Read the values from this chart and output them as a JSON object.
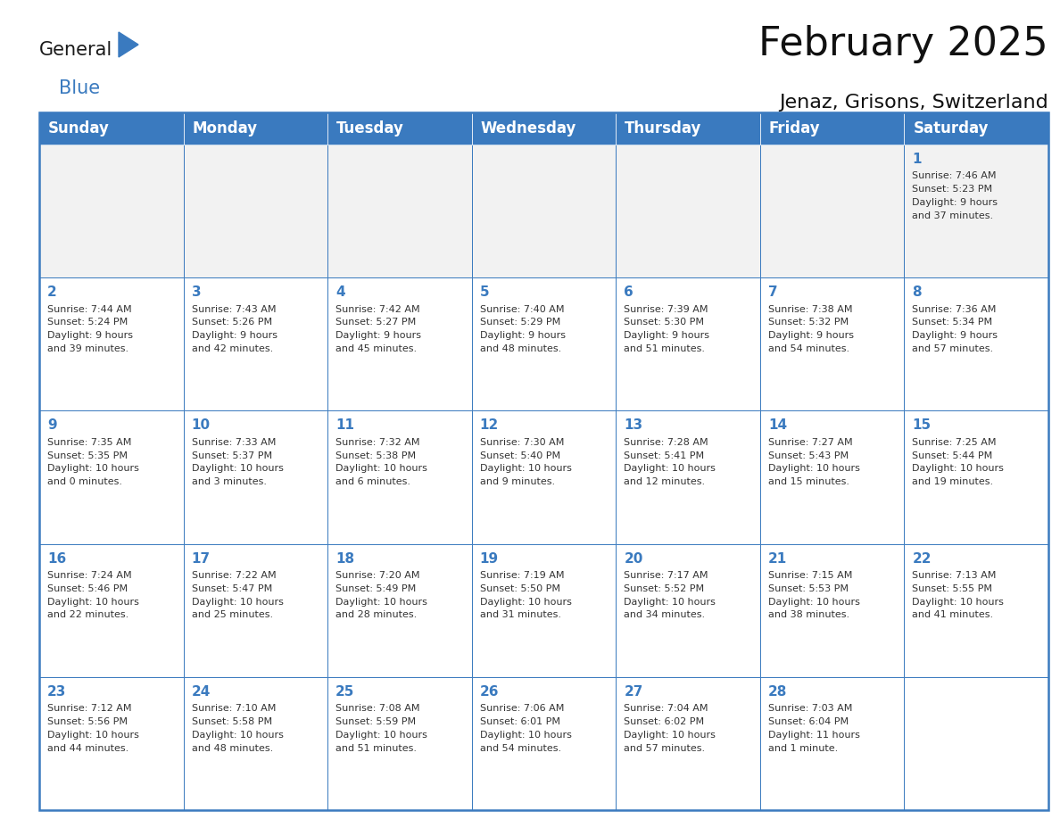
{
  "title": "February 2025",
  "subtitle": "Jenaz, Grisons, Switzerland",
  "header_color": "#3a7abf",
  "header_text_color": "#ffffff",
  "cell_bg_white": "#ffffff",
  "cell_bg_gray": "#f2f2f2",
  "border_color": "#3a7abf",
  "text_color": "#333333",
  "day_num_color": "#3a7abf",
  "day_names": [
    "Sunday",
    "Monday",
    "Tuesday",
    "Wednesday",
    "Thursday",
    "Friday",
    "Saturday"
  ],
  "title_fontsize": 32,
  "subtitle_fontsize": 16,
  "header_fontsize": 12,
  "day_num_fontsize": 11,
  "cell_text_fontsize": 8.0,
  "days": [
    {
      "day": 1,
      "col": 6,
      "row": 0,
      "sunrise": "7:46 AM",
      "sunset": "5:23 PM",
      "daylight_l1": "Daylight: 9 hours",
      "daylight_l2": "and 37 minutes."
    },
    {
      "day": 2,
      "col": 0,
      "row": 1,
      "sunrise": "7:44 AM",
      "sunset": "5:24 PM",
      "daylight_l1": "Daylight: 9 hours",
      "daylight_l2": "and 39 minutes."
    },
    {
      "day": 3,
      "col": 1,
      "row": 1,
      "sunrise": "7:43 AM",
      "sunset": "5:26 PM",
      "daylight_l1": "Daylight: 9 hours",
      "daylight_l2": "and 42 minutes."
    },
    {
      "day": 4,
      "col": 2,
      "row": 1,
      "sunrise": "7:42 AM",
      "sunset": "5:27 PM",
      "daylight_l1": "Daylight: 9 hours",
      "daylight_l2": "and 45 minutes."
    },
    {
      "day": 5,
      "col": 3,
      "row": 1,
      "sunrise": "7:40 AM",
      "sunset": "5:29 PM",
      "daylight_l1": "Daylight: 9 hours",
      "daylight_l2": "and 48 minutes."
    },
    {
      "day": 6,
      "col": 4,
      "row": 1,
      "sunrise": "7:39 AM",
      "sunset": "5:30 PM",
      "daylight_l1": "Daylight: 9 hours",
      "daylight_l2": "and 51 minutes."
    },
    {
      "day": 7,
      "col": 5,
      "row": 1,
      "sunrise": "7:38 AM",
      "sunset": "5:32 PM",
      "daylight_l1": "Daylight: 9 hours",
      "daylight_l2": "and 54 minutes."
    },
    {
      "day": 8,
      "col": 6,
      "row": 1,
      "sunrise": "7:36 AM",
      "sunset": "5:34 PM",
      "daylight_l1": "Daylight: 9 hours",
      "daylight_l2": "and 57 minutes."
    },
    {
      "day": 9,
      "col": 0,
      "row": 2,
      "sunrise": "7:35 AM",
      "sunset": "5:35 PM",
      "daylight_l1": "Daylight: 10 hours",
      "daylight_l2": "and 0 minutes."
    },
    {
      "day": 10,
      "col": 1,
      "row": 2,
      "sunrise": "7:33 AM",
      "sunset": "5:37 PM",
      "daylight_l1": "Daylight: 10 hours",
      "daylight_l2": "and 3 minutes."
    },
    {
      "day": 11,
      "col": 2,
      "row": 2,
      "sunrise": "7:32 AM",
      "sunset": "5:38 PM",
      "daylight_l1": "Daylight: 10 hours",
      "daylight_l2": "and 6 minutes."
    },
    {
      "day": 12,
      "col": 3,
      "row": 2,
      "sunrise": "7:30 AM",
      "sunset": "5:40 PM",
      "daylight_l1": "Daylight: 10 hours",
      "daylight_l2": "and 9 minutes."
    },
    {
      "day": 13,
      "col": 4,
      "row": 2,
      "sunrise": "7:28 AM",
      "sunset": "5:41 PM",
      "daylight_l1": "Daylight: 10 hours",
      "daylight_l2": "and 12 minutes."
    },
    {
      "day": 14,
      "col": 5,
      "row": 2,
      "sunrise": "7:27 AM",
      "sunset": "5:43 PM",
      "daylight_l1": "Daylight: 10 hours",
      "daylight_l2": "and 15 minutes."
    },
    {
      "day": 15,
      "col": 6,
      "row": 2,
      "sunrise": "7:25 AM",
      "sunset": "5:44 PM",
      "daylight_l1": "Daylight: 10 hours",
      "daylight_l2": "and 19 minutes."
    },
    {
      "day": 16,
      "col": 0,
      "row": 3,
      "sunrise": "7:24 AM",
      "sunset": "5:46 PM",
      "daylight_l1": "Daylight: 10 hours",
      "daylight_l2": "and 22 minutes."
    },
    {
      "day": 17,
      "col": 1,
      "row": 3,
      "sunrise": "7:22 AM",
      "sunset": "5:47 PM",
      "daylight_l1": "Daylight: 10 hours",
      "daylight_l2": "and 25 minutes."
    },
    {
      "day": 18,
      "col": 2,
      "row": 3,
      "sunrise": "7:20 AM",
      "sunset": "5:49 PM",
      "daylight_l1": "Daylight: 10 hours",
      "daylight_l2": "and 28 minutes."
    },
    {
      "day": 19,
      "col": 3,
      "row": 3,
      "sunrise": "7:19 AM",
      "sunset": "5:50 PM",
      "daylight_l1": "Daylight: 10 hours",
      "daylight_l2": "and 31 minutes."
    },
    {
      "day": 20,
      "col": 4,
      "row": 3,
      "sunrise": "7:17 AM",
      "sunset": "5:52 PM",
      "daylight_l1": "Daylight: 10 hours",
      "daylight_l2": "and 34 minutes."
    },
    {
      "day": 21,
      "col": 5,
      "row": 3,
      "sunrise": "7:15 AM",
      "sunset": "5:53 PM",
      "daylight_l1": "Daylight: 10 hours",
      "daylight_l2": "and 38 minutes."
    },
    {
      "day": 22,
      "col": 6,
      "row": 3,
      "sunrise": "7:13 AM",
      "sunset": "5:55 PM",
      "daylight_l1": "Daylight: 10 hours",
      "daylight_l2": "and 41 minutes."
    },
    {
      "day": 23,
      "col": 0,
      "row": 4,
      "sunrise": "7:12 AM",
      "sunset": "5:56 PM",
      "daylight_l1": "Daylight: 10 hours",
      "daylight_l2": "and 44 minutes."
    },
    {
      "day": 24,
      "col": 1,
      "row": 4,
      "sunrise": "7:10 AM",
      "sunset": "5:58 PM",
      "daylight_l1": "Daylight: 10 hours",
      "daylight_l2": "and 48 minutes."
    },
    {
      "day": 25,
      "col": 2,
      "row": 4,
      "sunrise": "7:08 AM",
      "sunset": "5:59 PM",
      "daylight_l1": "Daylight: 10 hours",
      "daylight_l2": "and 51 minutes."
    },
    {
      "day": 26,
      "col": 3,
      "row": 4,
      "sunrise": "7:06 AM",
      "sunset": "6:01 PM",
      "daylight_l1": "Daylight: 10 hours",
      "daylight_l2": "and 54 minutes."
    },
    {
      "day": 27,
      "col": 4,
      "row": 4,
      "sunrise": "7:04 AM",
      "sunset": "6:02 PM",
      "daylight_l1": "Daylight: 10 hours",
      "daylight_l2": "and 57 minutes."
    },
    {
      "day": 28,
      "col": 5,
      "row": 4,
      "sunrise": "7:03 AM",
      "sunset": "6:04 PM",
      "daylight_l1": "Daylight: 11 hours",
      "daylight_l2": "and 1 minute."
    }
  ],
  "logo_general_color": "#1a1a1a",
  "logo_blue_color": "#3a7abf",
  "fig_width": 11.88,
  "fig_height": 9.18
}
